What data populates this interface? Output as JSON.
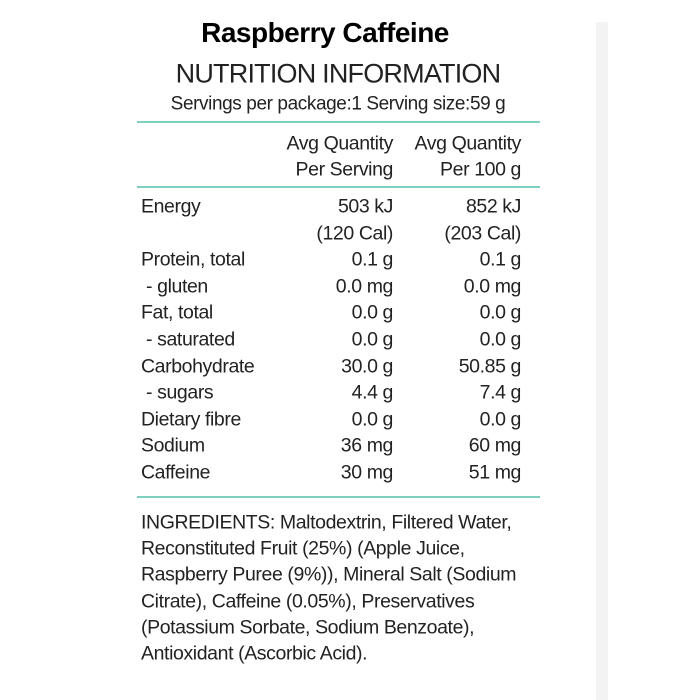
{
  "title": "Raspberry Caffeine",
  "subtitle": "NUTRITION INFORMATION",
  "servings": "Servings per package:1 Serving size:59 g",
  "columns": [
    [
      "Avg Quantity",
      "Per Serving"
    ],
    [
      "Avg Quantity",
      "Per 100 g"
    ]
  ],
  "rows": [
    {
      "label": "Energy",
      "per_serving": [
        "503 kJ",
        "(120 Cal)"
      ],
      "per_100g": [
        "852 kJ",
        "(203 Cal)"
      ]
    },
    {
      "label": "Protein, total",
      "per_serving": [
        "0.1 g"
      ],
      "per_100g": [
        "0.1 g"
      ]
    },
    {
      "label": " - gluten",
      "per_serving": [
        "0.0 mg"
      ],
      "per_100g": [
        "0.0 mg"
      ]
    },
    {
      "label": "Fat, total",
      "per_serving": [
        "0.0 g"
      ],
      "per_100g": [
        "0.0 g"
      ]
    },
    {
      "label": " - saturated",
      "per_serving": [
        "0.0 g"
      ],
      "per_100g": [
        "0.0 g"
      ]
    },
    {
      "label": "Carbohydrate",
      "per_serving": [
        "30.0 g"
      ],
      "per_100g": [
        "50.85 g"
      ]
    },
    {
      "label": " - sugars",
      "per_serving": [
        "4.4 g"
      ],
      "per_100g": [
        "7.4 g"
      ]
    },
    {
      "label": "Dietary fibre",
      "per_serving": [
        "0.0 g"
      ],
      "per_100g": [
        "0.0 g"
      ]
    },
    {
      "label": "Sodium",
      "per_serving": [
        "36 mg"
      ],
      "per_100g": [
        "60 mg"
      ]
    },
    {
      "label": "Caffeine",
      "per_serving": [
        "30 mg"
      ],
      "per_100g": [
        "51 mg"
      ]
    }
  ],
  "ingredients": [
    "INGREDIENTS: Maltodextrin, Filtered Water,",
    "Reconstituted Fruit (25%) (Apple Juice,",
    "Raspberry Puree (9%)), Mineral Salt (Sodium",
    "Citrate), Caffeine (0.05%), Preservatives",
    "(Potassium Sorbate, Sodium Benzoate),",
    "Antioxidant (Ascorbic Acid)."
  ]
}
